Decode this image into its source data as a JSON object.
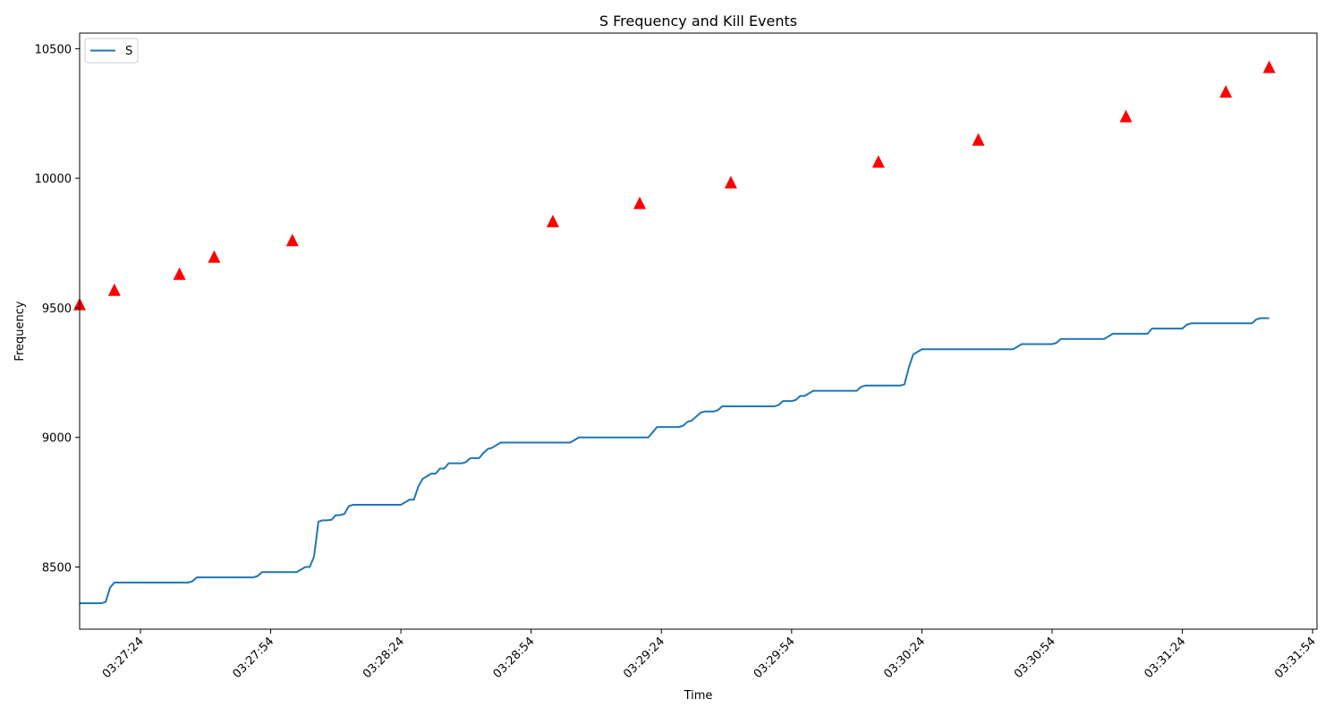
{
  "chart_data": {
    "type": "line",
    "title": "S Frequency and Kill Events",
    "xlabel": "Time",
    "ylabel": "Frequency",
    "legend_placement": "upper-left",
    "grid": false,
    "xlim": [
      "03:27:10",
      "03:31:55"
    ],
    "ylim": [
      8260,
      10560
    ],
    "x_ticks": [
      "03:27:24",
      "03:27:54",
      "03:28:24",
      "03:28:54",
      "03:29:24",
      "03:29:54",
      "03:30:24",
      "03:30:54",
      "03:31:24",
      "03:31:54"
    ],
    "y_ticks": [
      8500,
      9000,
      9500,
      10000,
      10500
    ],
    "colors": {
      "series": "#1f77b4",
      "events": "#ff0000"
    },
    "series": [
      {
        "name": "S",
        "x": [
          "03:27:10",
          "03:27:15",
          "03:27:16",
          "03:27:17",
          "03:27:18",
          "03:27:35",
          "03:27:36",
          "03:27:37",
          "03:27:50",
          "03:27:51",
          "03:27:52",
          "03:28:00",
          "03:28:01",
          "03:28:02",
          "03:28:03",
          "03:28:04",
          "03:28:05",
          "03:28:06",
          "03:28:07",
          "03:28:08",
          "03:28:09",
          "03:28:10",
          "03:28:11",
          "03:28:12",
          "03:28:13",
          "03:28:14",
          "03:28:15",
          "03:28:16",
          "03:28:17",
          "03:28:18",
          "03:28:19",
          "03:28:20",
          "03:28:21",
          "03:28:22",
          "03:28:23",
          "03:28:24",
          "03:28:26",
          "03:28:27",
          "03:28:28",
          "03:28:29",
          "03:28:30",
          "03:28:31",
          "03:28:32",
          "03:28:33",
          "03:28:34",
          "03:28:35",
          "03:28:36",
          "03:28:37",
          "03:28:38",
          "03:28:39",
          "03:28:40",
          "03:28:41",
          "03:28:42",
          "03:28:43",
          "03:28:44",
          "03:28:45",
          "03:28:46",
          "03:28:47",
          "03:28:48",
          "03:28:49",
          "03:28:50",
          "03:29:03",
          "03:29:04",
          "03:29:05",
          "03:29:21",
          "03:29:22",
          "03:29:23",
          "03:29:28",
          "03:29:29",
          "03:29:30",
          "03:29:31",
          "03:29:32",
          "03:29:33",
          "03:29:34",
          "03:29:35",
          "03:29:36",
          "03:29:37",
          "03:29:38",
          "03:29:50",
          "03:29:51",
          "03:29:52",
          "03:29:53",
          "03:29:54",
          "03:29:55",
          "03:29:56",
          "03:29:57",
          "03:29:58",
          "03:29:59",
          "03:30:00",
          "03:30:09",
          "03:30:10",
          "03:30:11",
          "03:30:19",
          "03:30:20",
          "03:30:21",
          "03:30:22",
          "03:30:23",
          "03:30:24",
          "03:30:45",
          "03:30:46",
          "03:30:47",
          "03:30:54",
          "03:30:55",
          "03:30:56",
          "03:31:06",
          "03:31:07",
          "03:31:08",
          "03:31:16",
          "03:31:17",
          "03:31:18",
          "03:31:24",
          "03:31:25",
          "03:31:26",
          "03:31:40",
          "03:31:41",
          "03:31:42",
          "03:31:44"
        ],
        "values": [
          8360,
          8360,
          8365,
          8420,
          8440,
          8440,
          8445,
          8460,
          8460,
          8465,
          8480,
          8480,
          8490,
          8500,
          8500,
          8540,
          8675,
          8680,
          8680,
          8682,
          8700,
          8700,
          8705,
          8735,
          8740,
          8740,
          8740,
          8740,
          8740,
          8740,
          8740,
          8740,
          8740,
          8740,
          8740,
          8740,
          8760,
          8760,
          8810,
          8840,
          8850,
          8860,
          8860,
          8880,
          8880,
          8900,
          8900,
          8900,
          8900,
          8905,
          8920,
          8920,
          8920,
          8940,
          8955,
          8960,
          8970,
          8980,
          8980,
          8980,
          8980,
          8980,
          8990,
          9000,
          9000,
          9020,
          9040,
          9040,
          9045,
          9060,
          9065,
          9080,
          9095,
          9100,
          9100,
          9100,
          9105,
          9120,
          9120,
          9125,
          9140,
          9140,
          9140,
          9145,
          9160,
          9160,
          9170,
          9180,
          9180,
          9180,
          9195,
          9200,
          9200,
          9205,
          9270,
          9320,
          9330,
          9340,
          9340,
          9350,
          9360,
          9360,
          9365,
          9380,
          9380,
          9390,
          9400,
          9400,
          9420,
          9420,
          9420,
          9435,
          9440,
          9440,
          9455,
          9460,
          9460
        ]
      }
    ],
    "events": {
      "marker": "triangle",
      "x": [
        "03:27:10",
        "03:27:18",
        "03:27:33",
        "03:27:41",
        "03:27:59",
        "03:28:59",
        "03:29:19",
        "03:29:40",
        "03:30:14",
        "03:30:37",
        "03:31:11",
        "03:31:34",
        "03:31:44"
      ],
      "values": [
        9515,
        9570,
        9632,
        9698,
        9762,
        9835,
        9905,
        9985,
        10065,
        10150,
        10240,
        10335,
        10430
      ]
    }
  }
}
